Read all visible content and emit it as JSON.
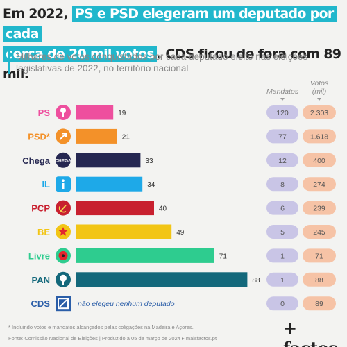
{
  "headline": {
    "part1": "Em 2022, ",
    "highlight1": "PS e PSD elegeram um deputado por cada",
    "highlight2": "cerca de 20 mil votos",
    "part2": ". CDS ficou de fora com 89 mil."
  },
  "subtitle": "Milhares de votos conquistados por cada deputado eleito nas eleições legislativas de 2022, no território nacional",
  "column_headers": {
    "mandatos": "Mandatos",
    "votos_line1": "Votos",
    "votos_line2": "(mil)"
  },
  "footnotes": {
    "note": "* Incluindo votos e mandatos alcançados pelas coligações na Madeira e Açores.",
    "source": "Fonte: Comissão Nacional de Eleições | Produzido a 05 de março de 2024 ▸ maisfactos.pt"
  },
  "logo": "+ factos",
  "colors": {
    "accent": "#21b7cc",
    "pill_mandatos": "#c9c5e6",
    "pill_votos": "#f6c3a6"
  },
  "chart_data": {
    "type": "bar",
    "orientation": "horizontal",
    "title": "Em 2022, PS e PSD elegeram um deputado por cada cerca de 20 mil votos. CDS ficou de fora com 89 mil.",
    "subtitle": "Milhares de votos conquistados por cada deputado eleito nas eleições legislativas de 2022, no território nacional",
    "categories": [
      "PS",
      "PSD*",
      "Chega",
      "IL",
      "PCP",
      "BE",
      "Livre",
      "PAN",
      "CDS"
    ],
    "values": [
      19,
      21,
      33,
      34,
      40,
      49,
      71,
      88,
      null
    ],
    "value_labels": [
      "19",
      "21",
      "33",
      "34",
      "40",
      "49",
      "71",
      "88",
      ""
    ],
    "bar_colors": [
      "#ee4f9e",
      "#f39129",
      "#252751",
      "#1ea9e8",
      "#c8202f",
      "#f2c515",
      "#2ecc8f",
      "#13687b",
      "#2b5ea8"
    ],
    "party_icons": [
      "rose-fist-icon",
      "arrow-logo-icon",
      "chega-logo-icon",
      "il-logo-icon",
      "hammer-sickle-icon",
      "star-logo-icon",
      "poppy-logo-icon",
      "tree-logo-icon",
      "cds-logo-icon"
    ],
    "cds_note": "não elegeu nenhum deputado",
    "mandatos": [
      "120",
      "77",
      "12",
      "8",
      "6",
      "5",
      "1",
      "1",
      "0"
    ],
    "votos_mil": [
      "2.303",
      "1.618",
      "400",
      "274",
      "239",
      "245",
      "71",
      "88",
      "89"
    ],
    "xlim": [
      0,
      90
    ],
    "grid": false,
    "legend": "none"
  }
}
